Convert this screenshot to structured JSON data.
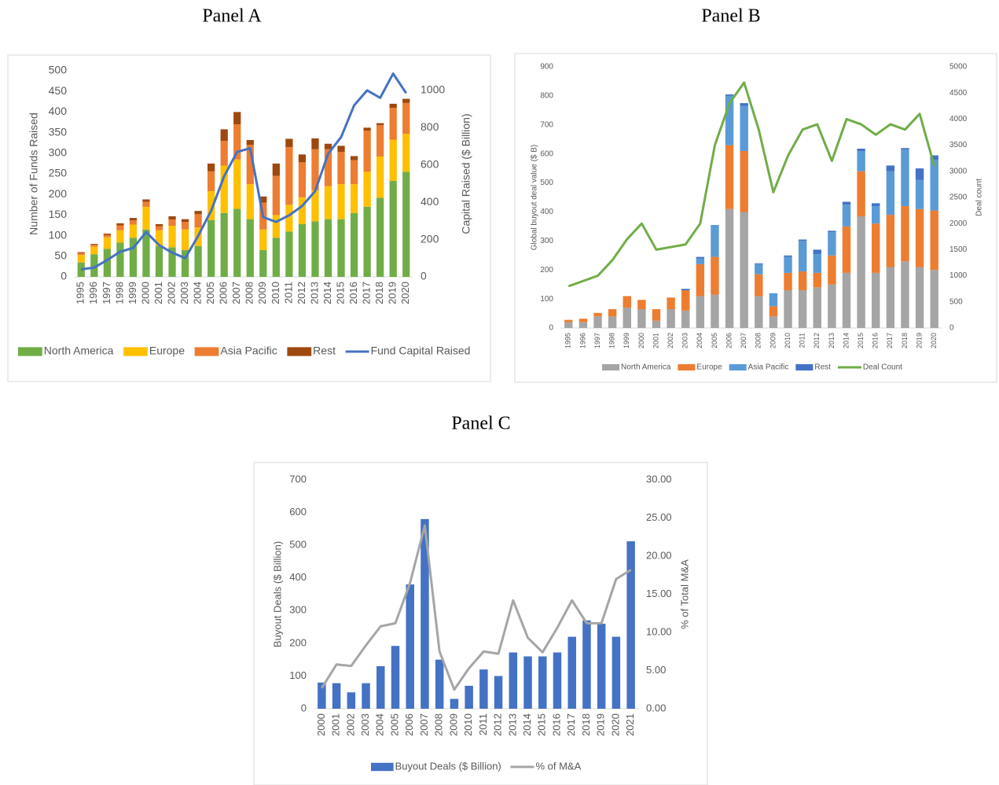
{
  "chart_data": [
    {
      "type": "bar",
      "stacked": true,
      "title": "Panel A",
      "ylabel": "Number of Funds Raised",
      "y2label": "Capital Raised ($ Billion)",
      "categories": [
        "1995",
        "1996",
        "1997",
        "1998",
        "1999",
        "2000",
        "2001",
        "2002",
        "2003",
        "2004",
        "2005",
        "2006",
        "2007",
        "2008",
        "2009",
        "2010",
        "2011",
        "2012",
        "2013",
        "2014",
        "2015",
        "2016",
        "2017",
        "2018",
        "2019",
        "2020"
      ],
      "ylim": [
        0,
        500
      ],
      "yticks": [
        0,
        50,
        100,
        150,
        200,
        250,
        300,
        350,
        400,
        450,
        500
      ],
      "y2lim": [
        0,
        1105
      ],
      "y2ticks": [
        0,
        200,
        400,
        600,
        800,
        1000
      ],
      "series": [
        {
          "name": "North America",
          "color": "#70ad47",
          "values": [
            35,
            55,
            68,
            83,
            95,
            115,
            75,
            72,
            65,
            75,
            138,
            155,
            165,
            140,
            65,
            95,
            110,
            128,
            135,
            140,
            140,
            155,
            170,
            192,
            233,
            255
          ]
        },
        {
          "name": "Europe",
          "color": "#ffc000",
          "values": [
            18,
            18,
            28,
            30,
            32,
            55,
            38,
            52,
            50,
            45,
            70,
            115,
            120,
            85,
            50,
            55,
            65,
            65,
            75,
            80,
            85,
            70,
            85,
            100,
            100,
            92
          ]
        },
        {
          "name": "Asia Pacific",
          "color": "#ed7d31",
          "values": [
            5,
            5,
            6,
            12,
            10,
            12,
            10,
            15,
            18,
            32,
            48,
            60,
            85,
            95,
            65,
            95,
            140,
            85,
            100,
            90,
            78,
            58,
            100,
            76,
            77,
            75
          ]
        },
        {
          "name": "Rest",
          "color": "#9e480e",
          "values": [
            2,
            2,
            3,
            5,
            6,
            6,
            5,
            8,
            7,
            8,
            19,
            28,
            30,
            12,
            15,
            30,
            20,
            19,
            26,
            13,
            15,
            10,
            7,
            5,
            10,
            10
          ]
        },
        {
          "name": "Fund Capital Raised",
          "color": "#4472c4",
          "type": "line",
          "axis": "y2",
          "values": [
            40,
            50,
            90,
            135,
            155,
            240,
            170,
            130,
            100,
            220,
            355,
            540,
            670,
            690,
            320,
            295,
            330,
            380,
            460,
            660,
            750,
            920,
            1000,
            960,
            1090,
            985
          ]
        }
      ]
    },
    {
      "type": "bar",
      "stacked": true,
      "title": "Panel B",
      "ylabel": "Global buyout deal value ($ B)",
      "y2label": "Deal count",
      "categories": [
        "1995",
        "1996",
        "1997",
        "1998",
        "1999",
        "2000",
        "2001",
        "2002",
        "2003",
        "2004",
        "2005",
        "2006",
        "2007",
        "2008",
        "2009",
        "2010",
        "2011",
        "2012",
        "2013",
        "2014",
        "2015",
        "2016",
        "2017",
        "2018",
        "2019",
        "2020"
      ],
      "ylim": [
        0,
        900
      ],
      "yticks": [
        0,
        100,
        200,
        300,
        400,
        500,
        600,
        700,
        800,
        900
      ],
      "y2lim": [
        0,
        5000
      ],
      "y2ticks": [
        0,
        500,
        1000,
        1500,
        2000,
        2500,
        3000,
        3500,
        4000,
        4500,
        5000
      ],
      "series": [
        {
          "name": "North America",
          "color": "#a5a5a5",
          "values": [
            20,
            20,
            40,
            40,
            70,
            65,
            25,
            65,
            60,
            110,
            115,
            410,
            400,
            110,
            40,
            130,
            130,
            140,
            150,
            190,
            385,
            190,
            210,
            230,
            210,
            200
          ]
        },
        {
          "name": "Europe",
          "color": "#ed7d31",
          "values": [
            8,
            12,
            12,
            25,
            40,
            32,
            40,
            40,
            70,
            110,
            130,
            220,
            210,
            75,
            35,
            60,
            65,
            50,
            100,
            160,
            155,
            170,
            180,
            190,
            200,
            205
          ]
        },
        {
          "name": "Asia Pacific",
          "color": "#5b9bd5",
          "values": [
            0,
            0,
            0,
            0,
            0,
            0,
            0,
            0,
            0,
            20,
            110,
            170,
            155,
            35,
            45,
            55,
            105,
            65,
            80,
            75,
            70,
            60,
            150,
            195,
            100,
            175
          ]
        },
        {
          "name": "Rest",
          "color": "#4472c4",
          "values": [
            0,
            0,
            0,
            0,
            0,
            0,
            0,
            0,
            5,
            5,
            0,
            5,
            10,
            3,
            0,
            5,
            5,
            15,
            5,
            10,
            8,
            10,
            20,
            5,
            40,
            15
          ]
        },
        {
          "name": "Deal Count",
          "color": "#70ad47",
          "type": "line",
          "axis": "y2",
          "values": [
            800,
            900,
            1000,
            1300,
            1700,
            2000,
            1500,
            1550,
            1600,
            2000,
            3500,
            4300,
            4700,
            3800,
            2600,
            3300,
            3800,
            3900,
            3200,
            4000,
            3900,
            3700,
            3900,
            3800,
            4100,
            3100
          ]
        }
      ]
    },
    {
      "type": "bar",
      "stacked": true,
      "title": "Panel C",
      "ylabel": "Buyout Deals ($ Billion)",
      "y2label": "% of Total M&A",
      "categories": [
        "2000",
        "2001",
        "2002",
        "2003",
        "2004",
        "2005",
        "2006",
        "2007",
        "2008",
        "2009",
        "2010",
        "2011",
        "2012",
        "2013",
        "2014",
        "2015",
        "2016",
        "2017",
        "2018",
        "2019",
        "2020",
        "2021"
      ],
      "ylim": [
        0,
        700
      ],
      "yticks": [
        0,
        100,
        200,
        300,
        400,
        500,
        600,
        700
      ],
      "y2lim": [
        0,
        30
      ],
      "y2ticks": [
        {
          "value": 0,
          "label": "0.00"
        },
        {
          "value": 5,
          "label": "5.00"
        },
        {
          "value": 10,
          "label": "10.00"
        },
        {
          "value": 15,
          "label": "15.00"
        },
        {
          "value": 20,
          "label": "20.00"
        },
        {
          "value": 25,
          "label": "25.00"
        },
        {
          "value": 30,
          "label": "30.00"
        }
      ],
      "series": [
        {
          "name": "Buyout Deals ($ Billion)",
          "color": "#4472c4",
          "values": [
            80,
            78,
            50,
            78,
            130,
            192,
            380,
            580,
            150,
            30,
            70,
            120,
            100,
            172,
            160,
            160,
            172,
            220,
            270,
            260,
            220,
            512
          ]
        },
        {
          "name": "% of M&A",
          "color": "#a5a5a5",
          "type": "line",
          "axis": "y2",
          "values": [
            2.7,
            5.8,
            5.6,
            8.3,
            10.8,
            11.2,
            16.5,
            24.0,
            7.5,
            2.5,
            5.3,
            7.5,
            7.2,
            14.2,
            9.3,
            7.4,
            10.6,
            14.2,
            11.2,
            11.2,
            17.0,
            18.2
          ]
        }
      ]
    }
  ]
}
